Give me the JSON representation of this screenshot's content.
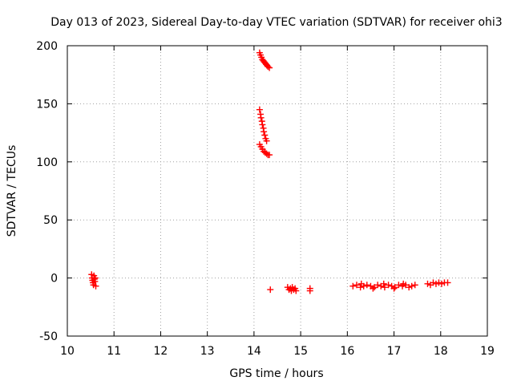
{
  "chart_data": {
    "type": "scatter",
    "title": "Day 013 of 2023, Sidereal Day-to-day VTEC variation (SDTVAR) for receiver ohi3",
    "xlabel": "GPS time / hours",
    "ylabel": "SDTVAR / TECUs",
    "xlim": [
      10,
      19
    ],
    "ylim": [
      -50,
      200
    ],
    "xticks": [
      10,
      11,
      12,
      13,
      14,
      15,
      16,
      17,
      18,
      19
    ],
    "yticks": [
      -50,
      0,
      50,
      100,
      150,
      200
    ],
    "xtick_labels": [
      "10",
      "11",
      "12",
      "13",
      "14",
      "15",
      "16",
      "17",
      "18",
      "19"
    ],
    "ytick_labels": [
      "-50",
      "0",
      "50",
      "100",
      "150",
      "200"
    ],
    "grid": true,
    "marker": "+",
    "color": "#ff0000",
    "series": [
      {
        "name": "SDTVAR",
        "points": [
          [
            10.52,
            3
          ],
          [
            10.53,
            0
          ],
          [
            10.54,
            -2
          ],
          [
            10.55,
            -4
          ],
          [
            10.56,
            -6
          ],
          [
            10.57,
            2
          ],
          [
            10.58,
            -1
          ],
          [
            10.59,
            -3
          ],
          [
            10.6,
            0
          ],
          [
            10.61,
            -7
          ],
          [
            14.12,
            194
          ],
          [
            14.14,
            192
          ],
          [
            14.16,
            190
          ],
          [
            14.18,
            188
          ],
          [
            14.2,
            187
          ],
          [
            14.22,
            186
          ],
          [
            14.24,
            185
          ],
          [
            14.26,
            184
          ],
          [
            14.28,
            183
          ],
          [
            14.3,
            182
          ],
          [
            14.33,
            181
          ],
          [
            14.12,
            145
          ],
          [
            14.14,
            141
          ],
          [
            14.15,
            138
          ],
          [
            14.17,
            135
          ],
          [
            14.18,
            132
          ],
          [
            14.2,
            129
          ],
          [
            14.21,
            126
          ],
          [
            14.23,
            123
          ],
          [
            14.25,
            120
          ],
          [
            14.27,
            118
          ],
          [
            14.12,
            115
          ],
          [
            14.15,
            113
          ],
          [
            14.18,
            111
          ],
          [
            14.21,
            109
          ],
          [
            14.24,
            108
          ],
          [
            14.27,
            107
          ],
          [
            14.3,
            106
          ],
          [
            14.33,
            106
          ],
          [
            14.35,
            -10
          ],
          [
            14.72,
            -8
          ],
          [
            14.75,
            -10
          ],
          [
            14.78,
            -9
          ],
          [
            14.8,
            -11
          ],
          [
            14.82,
            -8
          ],
          [
            14.85,
            -10
          ],
          [
            14.88,
            -9
          ],
          [
            14.9,
            -11
          ],
          [
            15.2,
            -9
          ],
          [
            15.2,
            -11
          ],
          [
            16.12,
            -7
          ],
          [
            16.2,
            -6
          ],
          [
            16.28,
            -8
          ],
          [
            16.35,
            -7
          ],
          [
            16.42,
            -6
          ],
          [
            16.5,
            -7
          ],
          [
            16.58,
            -8
          ],
          [
            16.65,
            -6
          ],
          [
            16.72,
            -7
          ],
          [
            16.8,
            -8
          ],
          [
            16.88,
            -6
          ],
          [
            16.95,
            -7
          ],
          [
            17.02,
            -8
          ],
          [
            17.1,
            -6
          ],
          [
            17.18,
            -7
          ],
          [
            17.25,
            -6
          ],
          [
            17.32,
            -8
          ],
          [
            17.38,
            -7
          ],
          [
            17.45,
            -6
          ],
          [
            16.3,
            -5
          ],
          [
            16.55,
            -9
          ],
          [
            16.78,
            -5
          ],
          [
            17.0,
            -9
          ],
          [
            17.2,
            -5
          ],
          [
            17.72,
            -5
          ],
          [
            17.78,
            -6
          ],
          [
            17.84,
            -4
          ],
          [
            17.9,
            -5
          ],
          [
            17.96,
            -4
          ],
          [
            18.02,
            -5
          ],
          [
            18.08,
            -4
          ],
          [
            18.15,
            -4
          ]
        ]
      }
    ]
  }
}
